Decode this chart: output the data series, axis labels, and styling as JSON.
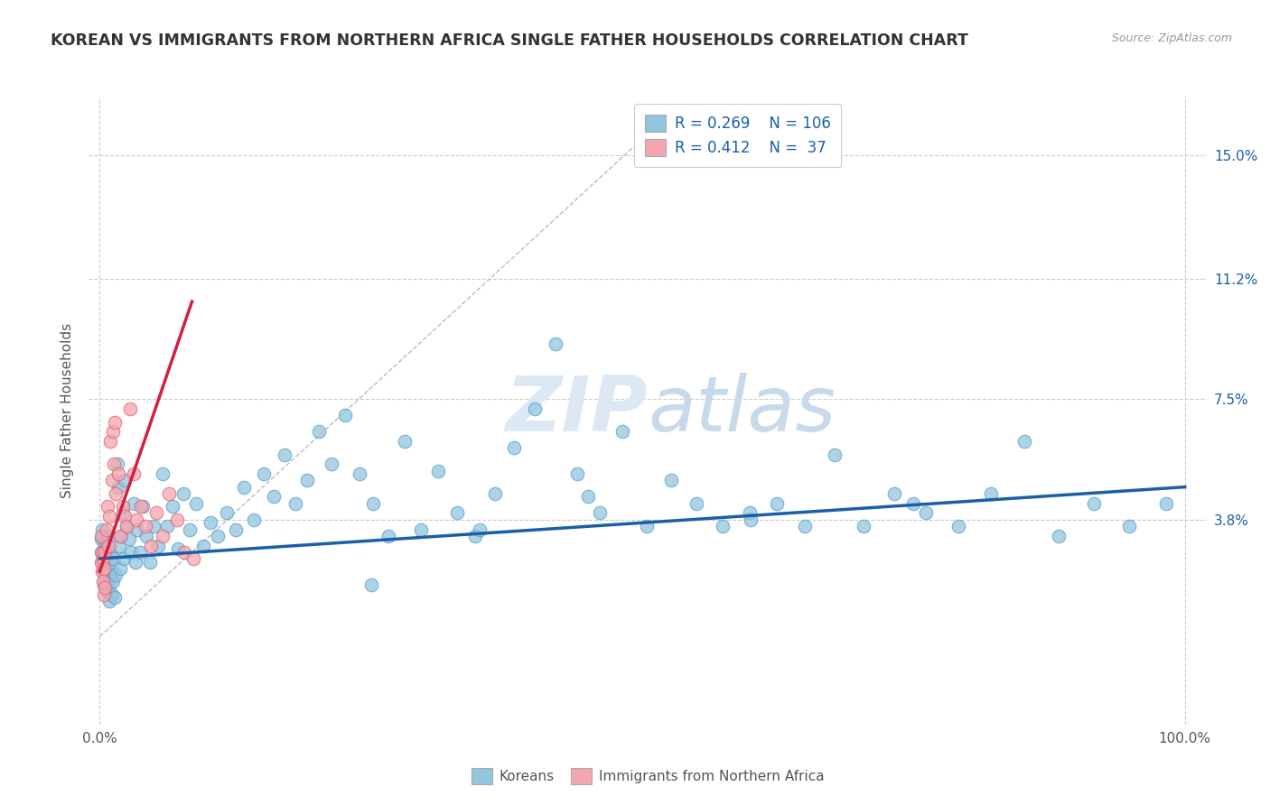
{
  "title": "KOREAN VS IMMIGRANTS FROM NORTHERN AFRICA SINGLE FATHER HOUSEHOLDS CORRELATION CHART",
  "source": "Source: ZipAtlas.com",
  "ylabel": "Single Father Households",
  "y_tick_labels": [
    "3.8%",
    "7.5%",
    "11.2%",
    "15.0%"
  ],
  "y_tick_values": [
    0.038,
    0.075,
    0.112,
    0.15
  ],
  "xlim": [
    -0.01,
    1.02
  ],
  "ylim": [
    -0.025,
    0.168
  ],
  "watermark_zip": "ZIP",
  "watermark_atlas": "atlas",
  "legend_R1": "R = 0.269",
  "legend_N1": "N = 106",
  "legend_R2": "R = 0.412",
  "legend_N2": "N =  37",
  "legend_label1": "Koreans",
  "legend_label2": "Immigrants from Northern Africa",
  "scatter_color1": "#92c5de",
  "scatter_color2": "#f4a6b0",
  "scatter_edge1": "#5b9dc9",
  "scatter_edge2": "#e06070",
  "line_color1": "#1a5fa8",
  "line_color2": "#d42040",
  "trendline1_x": [
    0.0,
    1.0
  ],
  "trendline1_y": [
    0.026,
    0.048
  ],
  "trendline2_x": [
    0.0,
    0.085
  ],
  "trendline2_y": [
    0.022,
    0.105
  ],
  "diag_line_x": [
    0.0,
    0.5
  ],
  "diag_line_y": [
    0.002,
    0.155
  ],
  "background_color": "#ffffff",
  "grid_color": "#cccccc",
  "title_color": "#333333",
  "title_fontsize": 12.5,
  "axis_label_fontsize": 11,
  "tick_label_color": "#1a5fa8",
  "korean_points_x": [
    0.001,
    0.001,
    0.002,
    0.002,
    0.003,
    0.003,
    0.004,
    0.004,
    0.005,
    0.005,
    0.006,
    0.006,
    0.007,
    0.007,
    0.008,
    0.008,
    0.009,
    0.009,
    0.01,
    0.01,
    0.011,
    0.011,
    0.012,
    0.013,
    0.014,
    0.015,
    0.016,
    0.017,
    0.018,
    0.019,
    0.02,
    0.021,
    0.022,
    0.023,
    0.025,
    0.027,
    0.029,
    0.031,
    0.033,
    0.035,
    0.037,
    0.04,
    0.043,
    0.046,
    0.05,
    0.054,
    0.058,
    0.062,
    0.067,
    0.072,
    0.077,
    0.083,
    0.089,
    0.095,
    0.102,
    0.109,
    0.117,
    0.125,
    0.133,
    0.142,
    0.151,
    0.16,
    0.17,
    0.18,
    0.191,
    0.202,
    0.214,
    0.226,
    0.239,
    0.252,
    0.266,
    0.281,
    0.296,
    0.312,
    0.329,
    0.346,
    0.364,
    0.382,
    0.401,
    0.42,
    0.44,
    0.461,
    0.482,
    0.504,
    0.527,
    0.55,
    0.574,
    0.599,
    0.624,
    0.65,
    0.677,
    0.704,
    0.732,
    0.761,
    0.791,
    0.821,
    0.852,
    0.884,
    0.916,
    0.949,
    0.983,
    0.6,
    0.45,
    0.35,
    0.25,
    0.75
  ],
  "korean_points_y": [
    0.028,
    0.032,
    0.025,
    0.035,
    0.022,
    0.033,
    0.018,
    0.029,
    0.02,
    0.031,
    0.016,
    0.027,
    0.023,
    0.03,
    0.017,
    0.033,
    0.013,
    0.025,
    0.02,
    0.028,
    0.015,
    0.022,
    0.019,
    0.026,
    0.014,
    0.021,
    0.055,
    0.048,
    0.03,
    0.023,
    0.033,
    0.04,
    0.026,
    0.05,
    0.036,
    0.032,
    0.028,
    0.043,
    0.025,
    0.035,
    0.028,
    0.042,
    0.033,
    0.025,
    0.036,
    0.03,
    0.052,
    0.036,
    0.042,
    0.029,
    0.046,
    0.035,
    0.043,
    0.03,
    0.037,
    0.033,
    0.04,
    0.035,
    0.048,
    0.038,
    0.052,
    0.045,
    0.058,
    0.043,
    0.05,
    0.065,
    0.055,
    0.07,
    0.052,
    0.043,
    0.033,
    0.062,
    0.035,
    0.053,
    0.04,
    0.033,
    0.046,
    0.06,
    0.072,
    0.092,
    0.052,
    0.04,
    0.065,
    0.036,
    0.05,
    0.043,
    0.036,
    0.04,
    0.043,
    0.036,
    0.058,
    0.036,
    0.046,
    0.04,
    0.036,
    0.046,
    0.062,
    0.033,
    0.043,
    0.036,
    0.043,
    0.038,
    0.045,
    0.035,
    0.018,
    0.043
  ],
  "africa_points_x": [
    0.001,
    0.001,
    0.002,
    0.002,
    0.003,
    0.003,
    0.004,
    0.004,
    0.005,
    0.005,
    0.006,
    0.007,
    0.008,
    0.009,
    0.01,
    0.011,
    0.012,
    0.013,
    0.014,
    0.015,
    0.017,
    0.019,
    0.021,
    0.023,
    0.025,
    0.028,
    0.031,
    0.034,
    0.038,
    0.042,
    0.047,
    0.052,
    0.058,
    0.064,
    0.071,
    0.078,
    0.086
  ],
  "africa_points_y": [
    0.025,
    0.033,
    0.022,
    0.028,
    0.019,
    0.026,
    0.015,
    0.023,
    0.017,
    0.028,
    0.035,
    0.042,
    0.03,
    0.039,
    0.062,
    0.05,
    0.065,
    0.055,
    0.068,
    0.046,
    0.052,
    0.033,
    0.042,
    0.039,
    0.036,
    0.072,
    0.052,
    0.038,
    0.042,
    0.036,
    0.03,
    0.04,
    0.033,
    0.046,
    0.038,
    0.028,
    0.026
  ]
}
